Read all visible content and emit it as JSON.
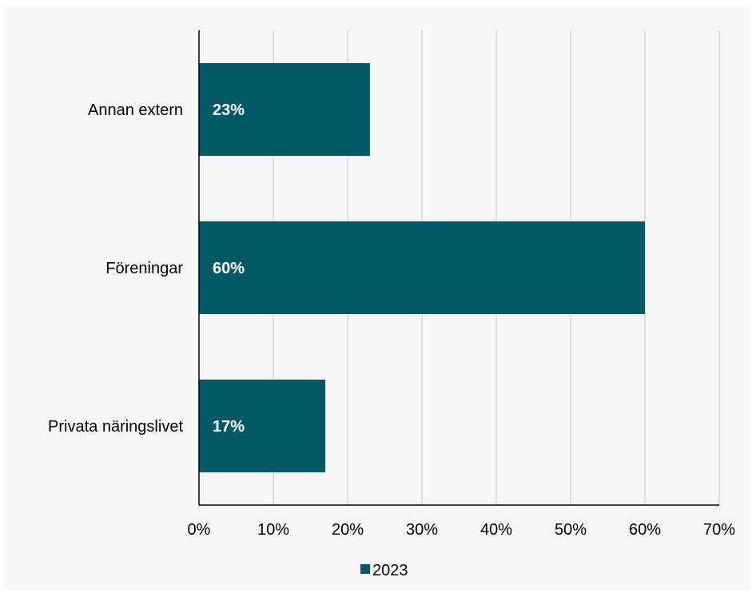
{
  "chart_data": {
    "type": "bar",
    "orientation": "horizontal",
    "categories": [
      "Annan extern",
      "Föreningar",
      "Privata näringslivet"
    ],
    "series": [
      {
        "name": "2023",
        "values": [
          23,
          60,
          17
        ],
        "data_labels": [
          "23%",
          "60%",
          "17%"
        ],
        "color": "#045966"
      }
    ],
    "xlim": [
      0,
      70
    ],
    "x_ticks": [
      0,
      10,
      20,
      30,
      40,
      50,
      60,
      70
    ],
    "x_tick_labels": [
      "0%",
      "10%",
      "20%",
      "30%",
      "40%",
      "50%",
      "60%",
      "70%"
    ],
    "grid": "vertical",
    "legend": "bottom",
    "title": "",
    "xlabel": "",
    "ylabel": ""
  },
  "colors": {
    "background": "#f6f6f6",
    "gridline": "#c8c8c8",
    "axis": "#000000",
    "bar": "#045966"
  }
}
